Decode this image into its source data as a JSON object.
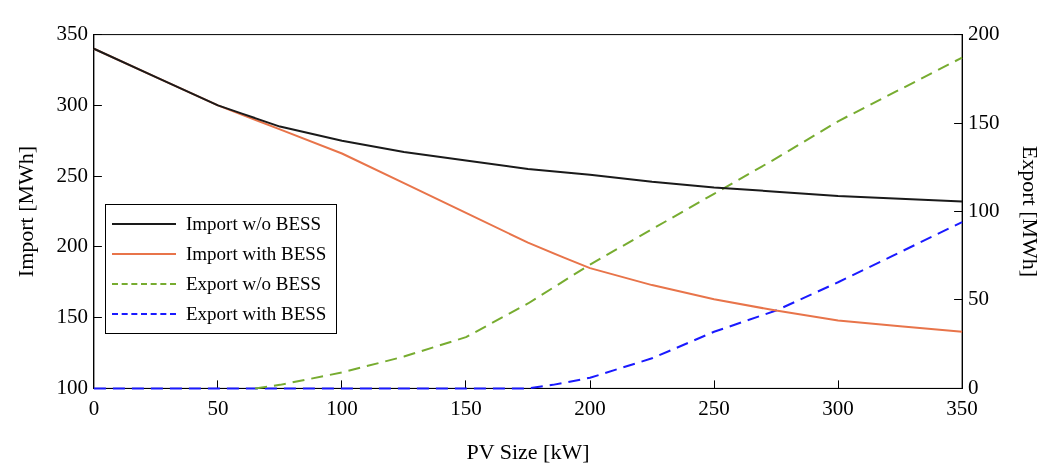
{
  "chart_data": {
    "type": "line",
    "xlabel": "PV Size [kW]",
    "ylabel": "Import [MWh]",
    "y2label": "Export [MWh]",
    "xlim": [
      0,
      350
    ],
    "xticks": [
      0,
      50,
      100,
      150,
      200,
      250,
      300,
      350
    ],
    "ylim": [
      100,
      350
    ],
    "yticks": [
      100,
      150,
      200,
      250,
      300,
      350
    ],
    "y2lim": [
      0,
      200
    ],
    "y2ticks": [
      0,
      50,
      100,
      150,
      200
    ],
    "grid": false,
    "legend": "left",
    "marker": "none",
    "series": [
      {
        "name": "Import w/o BESS",
        "color": "#1a1a1a",
        "line_style": "solid",
        "x": [
          0,
          25,
          50,
          60,
          75,
          100,
          125,
          150,
          175,
          200,
          225,
          250,
          275,
          300,
          325,
          350
        ],
        "values": [
          340,
          320,
          300,
          294,
          285,
          275,
          267,
          261,
          255,
          251,
          246,
          242,
          239,
          236,
          234,
          232
        ]
      },
      {
        "name": "Import with BESS",
        "color": "#e8744a",
        "line_style": "solid",
        "x": [
          0,
          25,
          50,
          75,
          100,
          125,
          150,
          175,
          190,
          200,
          225,
          250,
          275,
          300,
          325,
          350
        ],
        "values": [
          340,
          320,
          300,
          283,
          266,
          245,
          224,
          203,
          192,
          185,
          173,
          163,
          155,
          148,
          144,
          140
        ]
      },
      {
        "name": "Export w/o BESS",
        "color": "#77ac30",
        "line_style": "dashed",
        "axis": "y2",
        "x": [
          65,
          75,
          100,
          125,
          150,
          175,
          200,
          225,
          250,
          275,
          300,
          325,
          350
        ],
        "values": [
          0,
          2,
          9,
          18,
          29,
          48,
          70,
          90,
          110,
          130,
          151,
          169,
          187
        ]
      },
      {
        "name": "Export with BESS",
        "color": "#1a1aff",
        "line_style": "dashed",
        "axis": "y2",
        "x": [
          0,
          175,
          185,
          200,
          225,
          250,
          275,
          300,
          325,
          350
        ],
        "values": [
          0,
          0,
          2,
          6,
          17,
          32,
          44,
          60,
          77,
          94
        ]
      }
    ]
  }
}
